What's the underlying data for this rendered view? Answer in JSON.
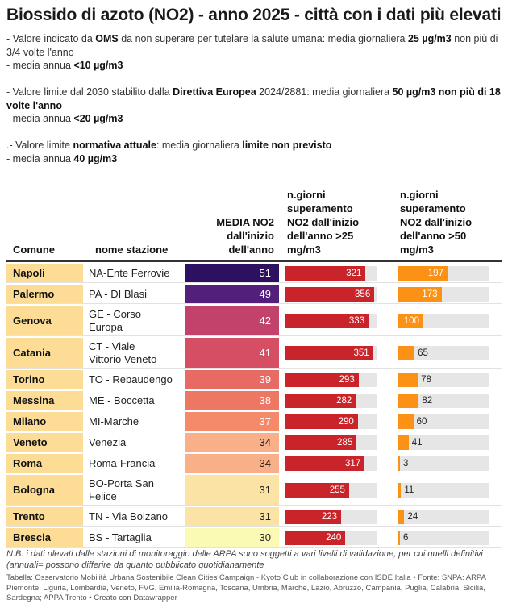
{
  "title": "Biossido di azoto (NO2) - anno 2025 - città con i dati più elevati",
  "intro": {
    "p1a": [
      "- Valore indicato da ",
      "OMS",
      " da non superare per tutelare la salute umana: media giornaliera ",
      "25 µg/m3",
      " non più di 3/4 volte l'anno"
    ],
    "p1b": [
      "- media annua ",
      "<10 µg/m3"
    ],
    "p2a": [
      "- Valore limite dal 2030 stabilito dalla ",
      "Direttiva Europea",
      " 2024/2881: media giornaliera ",
      "50 µg/m3 non più di 18 volte l'anno"
    ],
    "p2b": [
      "- media annua ",
      "<20 µg/m3"
    ],
    "p3a": [
      ".- Valore limite ",
      "normativa attuale",
      ": media giornaliera ",
      "limite non previsto"
    ],
    "p3b": [
      "- media annua ",
      "40 µg/m3"
    ]
  },
  "headers": {
    "comune": "Comune",
    "stazione": "nome stazione",
    "media": [
      "MEDIA NO2",
      "dall'inizio",
      "dell'anno"
    ],
    "giorni25": [
      "n.giorni",
      "superamento",
      "NO2 dall'inizio",
      "dell'anno >25",
      "mg/m3"
    ],
    "giorni50": [
      "n.giorni",
      "superamento",
      "NO2 dall'inizio",
      "dell'anno >50",
      "mg/m3"
    ]
  },
  "chart_data": {
    "type": "table",
    "columns": [
      "Comune",
      "nome stazione",
      "MEDIA NO2 dall'inizio dell'anno",
      "n.giorni superamento NO2 dall'inizio dell'anno >25 mg/m3",
      "n.giorni superamento NO2 dall'inizio dell'anno >50 mg/m3"
    ],
    "bar_max": 365,
    "colors": {
      "bar25": "#c8242a",
      "bar50": "#fb9215",
      "track": "#e6e6e6",
      "comune_bg": "#fddc95"
    },
    "rows": [
      {
        "comune": "Napoli",
        "stazione": [
          "NA-Ente Ferrovie"
        ],
        "media": 51,
        "g25": 321,
        "g50": 197,
        "color": "#2d1160",
        "row": 1
      },
      {
        "comune": "Palermo",
        "stazione": [
          "PA - DI Blasi"
        ],
        "media": 49,
        "g25": 356,
        "g50": 173,
        "color": "#52207a",
        "row": 1
      },
      {
        "comune": "Genova",
        "stazione": [
          "GE - Corso",
          "Europa"
        ],
        "media": 42,
        "g25": 333,
        "g50": 100,
        "color": "#c3426c",
        "row": 2
      },
      {
        "comune": "Catania",
        "stazione": [
          "CT - Viale",
          "Vittorio Veneto"
        ],
        "media": 41,
        "g25": 351,
        "g50": 65,
        "color": "#d54e64",
        "row": 2
      },
      {
        "comune": "Torino",
        "stazione": [
          "TO - Rebaudengo"
        ],
        "media": 39,
        "g25": 293,
        "g50": 78,
        "color": "#e76a63",
        "row": 1
      },
      {
        "comune": "Messina",
        "stazione": [
          "ME - Boccetta"
        ],
        "media": 38,
        "g25": 282,
        "g50": 82,
        "color": "#ee7764",
        "row": 1
      },
      {
        "comune": "Milano",
        "stazione": [
          "MI-Marche"
        ],
        "media": 37,
        "g25": 290,
        "g50": 60,
        "color": "#f48a6a",
        "row": 1
      },
      {
        "comune": "Veneto",
        "stazione": [
          "Venezia"
        ],
        "media": 34,
        "g25": 285,
        "g50": 41,
        "color": "#f9b088",
        "row": 1
      },
      {
        "comune": "Roma",
        "stazione": [
          "Roma-Francia"
        ],
        "media": 34,
        "g25": 317,
        "g50": 3,
        "color": "#f9b088",
        "row": 1
      },
      {
        "comune": "Bologna",
        "stazione": [
          "BO-Porta San",
          "Felice"
        ],
        "media": 31,
        "g25": 255,
        "g50": 11,
        "color": "#fbe3a6",
        "row": 2
      },
      {
        "comune": "Trento",
        "stazione": [
          "TN - Via Bolzano"
        ],
        "media": 31,
        "g25": 223,
        "g50": 24,
        "color": "#fbe3a6",
        "row": 1
      },
      {
        "comune": "Brescia",
        "stazione": [
          "BS - Tartaglia"
        ],
        "media": 30,
        "g25": 240,
        "g50": 6,
        "color": "#fafab5",
        "row": 1
      }
    ]
  },
  "footnote": "N.B. i dati rilevati dalle stazioni di monitoraggio delle ARPA sono soggetti a vari livelli di validazione, per cui quelli definitivi (annuali= possono differire da quanto pubblicato quotidianamente",
  "source": "Tabella: Osservatorio Mobilità Urbana Sostenibile Clean Cities Campaign - Kyoto Club in collaborazione con ISDE Italia • Fonte: SNPA: ARPA Piemonte, Liguria, Lombardia, Veneto, FVG, Emilia-Romagna, Toscana, Umbria, Marche, Lazio, Abruzzo, Campania, Puglia, Calabria, Sicilia, Sardegna; APPA Trento • Creato con Datawrapper"
}
